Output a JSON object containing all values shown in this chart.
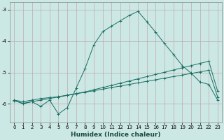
{
  "xlabel": "Humidex (Indice chaleur)",
  "bg_color": "#cce8e4",
  "line_color": "#1a6e64",
  "grid_color": "#c0a8b0",
  "xlim": [
    -0.5,
    23.5
  ],
  "ylim": [
    -6.6,
    -2.75
  ],
  "yticks": [
    -6,
    -5,
    -4,
    -3
  ],
  "xticks": [
    0,
    1,
    2,
    3,
    4,
    5,
    6,
    7,
    8,
    9,
    10,
    11,
    12,
    13,
    14,
    15,
    16,
    17,
    18,
    19,
    20,
    21,
    22,
    23
  ],
  "line1_y": [
    -5.9,
    -5.98,
    -5.93,
    -5.88,
    -5.83,
    -5.78,
    -5.73,
    -5.68,
    -5.63,
    -5.58,
    -5.53,
    -5.48,
    -5.43,
    -5.38,
    -5.33,
    -5.28,
    -5.23,
    -5.18,
    -5.13,
    -5.08,
    -5.03,
    -4.98,
    -4.93,
    -5.78
  ],
  "line2_y": [
    -5.88,
    -5.93,
    -5.88,
    -5.83,
    -5.8,
    -5.77,
    -5.72,
    -5.67,
    -5.62,
    -5.55,
    -5.48,
    -5.41,
    -5.34,
    -5.27,
    -5.2,
    -5.13,
    -5.06,
    -4.99,
    -4.92,
    -4.85,
    -4.78,
    -4.71,
    -4.64,
    -5.6
  ],
  "line3_y": [
    -5.88,
    -6.0,
    -5.93,
    -6.08,
    -5.88,
    -6.32,
    -6.12,
    -5.5,
    -4.88,
    -4.12,
    -3.7,
    -3.52,
    -3.35,
    -3.18,
    -3.05,
    -3.38,
    -3.72,
    -4.08,
    -4.42,
    -4.78,
    -5.02,
    -5.3,
    -5.38,
    -5.88
  ]
}
